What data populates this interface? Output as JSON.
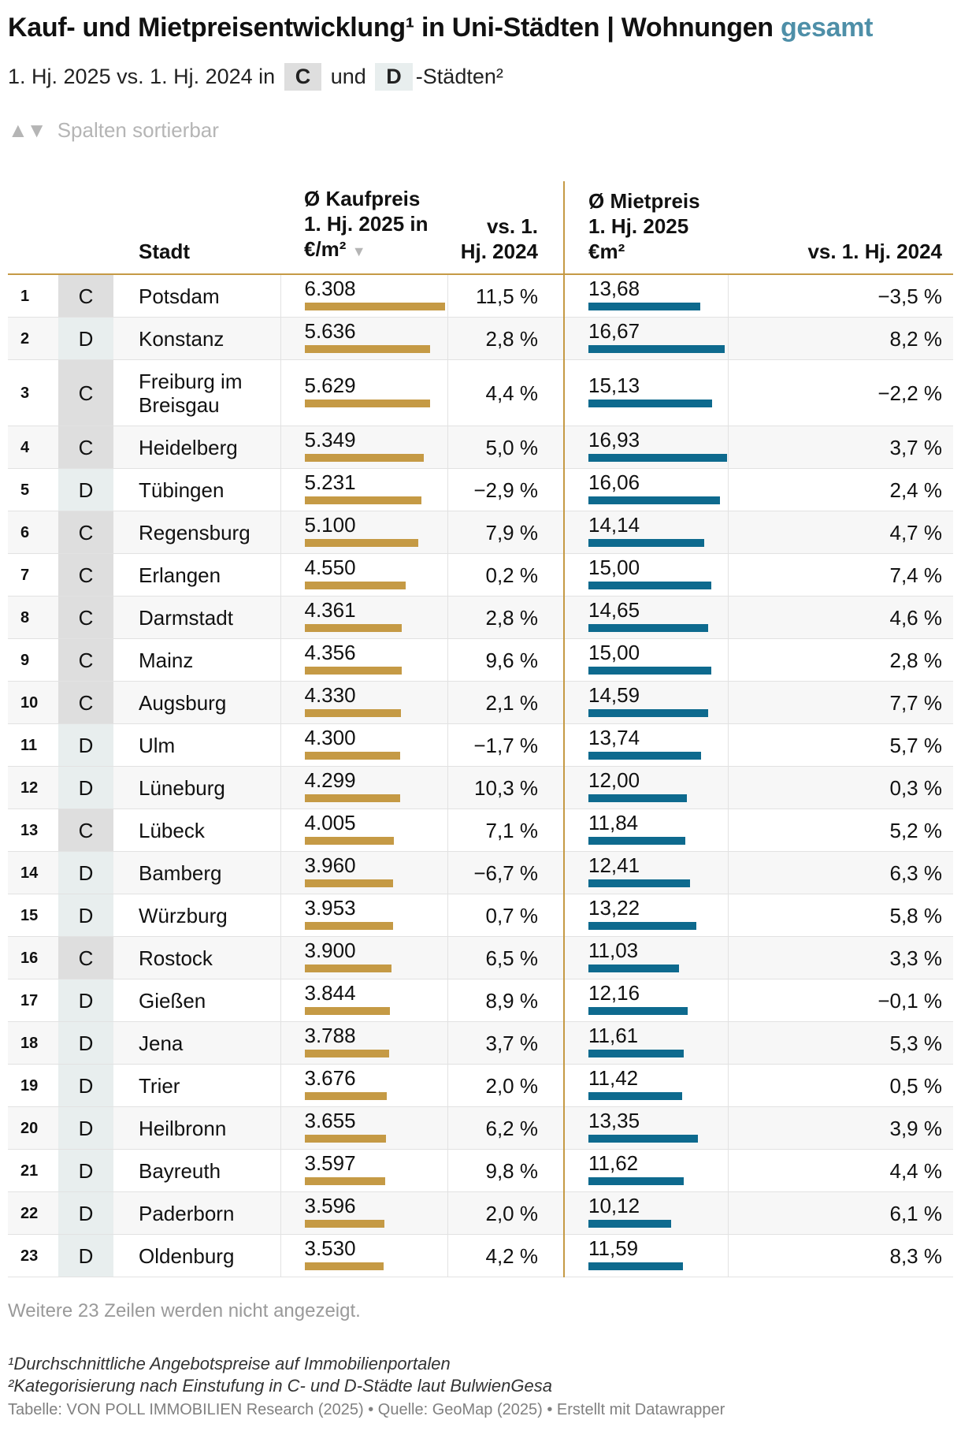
{
  "header": {
    "title_main": "Kauf- und Mietpreisentwicklung¹ in Uni-Städten | Wohnungen",
    "title_highlight": "gesamt",
    "subtitle_pre": "1. Hj. 2025 vs. 1. Hj. 2024 in",
    "tag_c": "C",
    "subtitle_mid": "und",
    "tag_d": "D",
    "subtitle_post": "-Städten²",
    "sort_hint": "Spalten sortierbar",
    "sort_hint_icon": "▲▼"
  },
  "columns": {
    "stadt": "Stadt",
    "kaufpreis": "Ø Kaufpreis 1. Hj. 2025 in €/m²",
    "kaufpreis_sort_icon": "▼",
    "vs_kauf": "vs. 1. Hj. 2024",
    "mietpreis": "Ø Mietpreis 1. Hj. 2025 €m²",
    "vs_miete": "vs. 1. Hj. 2024"
  },
  "colors": {
    "kauf_bar": "#c59a45",
    "miete_bar": "#0e6a8e",
    "highlight": "#4e8fa8"
  },
  "chart_data": {
    "type": "table",
    "kauf_max": 6308,
    "miete_max": 16.93,
    "rows": [
      {
        "rank": "1",
        "cat": "C",
        "city": "Potsdam",
        "kauf": 6308,
        "kauf_label": "6.308",
        "kauf_change": "11,5 %",
        "miete": 13.68,
        "miete_label": "13,68",
        "miete_change": "−3,5 %"
      },
      {
        "rank": "2",
        "cat": "D",
        "city": "Konstanz",
        "kauf": 5636,
        "kauf_label": "5.636",
        "kauf_change": "2,8 %",
        "miete": 16.67,
        "miete_label": "16,67",
        "miete_change": "8,2 %"
      },
      {
        "rank": "3",
        "cat": "C",
        "city": "Freiburg im Breisgau",
        "kauf": 5629,
        "kauf_label": "5.629",
        "kauf_change": "4,4 %",
        "miete": 15.13,
        "miete_label": "15,13",
        "miete_change": "−2,2 %"
      },
      {
        "rank": "4",
        "cat": "C",
        "city": "Heidelberg",
        "kauf": 5349,
        "kauf_label": "5.349",
        "kauf_change": "5,0 %",
        "miete": 16.93,
        "miete_label": "16,93",
        "miete_change": "3,7 %"
      },
      {
        "rank": "5",
        "cat": "D",
        "city": "Tübingen",
        "kauf": 5231,
        "kauf_label": "5.231",
        "kauf_change": "−2,9 %",
        "miete": 16.06,
        "miete_label": "16,06",
        "miete_change": "2,4 %"
      },
      {
        "rank": "6",
        "cat": "C",
        "city": "Regensburg",
        "kauf": 5100,
        "kauf_label": "5.100",
        "kauf_change": "7,9 %",
        "miete": 14.14,
        "miete_label": "14,14",
        "miete_change": "4,7 %"
      },
      {
        "rank": "7",
        "cat": "C",
        "city": "Erlangen",
        "kauf": 4550,
        "kauf_label": "4.550",
        "kauf_change": "0,2 %",
        "miete": 15.0,
        "miete_label": "15,00",
        "miete_change": "7,4 %"
      },
      {
        "rank": "8",
        "cat": "C",
        "city": "Darmstadt",
        "kauf": 4361,
        "kauf_label": "4.361",
        "kauf_change": "2,8 %",
        "miete": 14.65,
        "miete_label": "14,65",
        "miete_change": "4,6 %"
      },
      {
        "rank": "9",
        "cat": "C",
        "city": "Mainz",
        "kauf": 4356,
        "kauf_label": "4.356",
        "kauf_change": "9,6 %",
        "miete": 15.0,
        "miete_label": "15,00",
        "miete_change": "2,8 %"
      },
      {
        "rank": "10",
        "cat": "C",
        "city": "Augsburg",
        "kauf": 4330,
        "kauf_label": "4.330",
        "kauf_change": "2,1 %",
        "miete": 14.59,
        "miete_label": "14,59",
        "miete_change": "7,7 %"
      },
      {
        "rank": "11",
        "cat": "D",
        "city": "Ulm",
        "kauf": 4300,
        "kauf_label": "4.300",
        "kauf_change": "−1,7 %",
        "miete": 13.74,
        "miete_label": "13,74",
        "miete_change": "5,7 %"
      },
      {
        "rank": "12",
        "cat": "D",
        "city": "Lüneburg",
        "kauf": 4299,
        "kauf_label": "4.299",
        "kauf_change": "10,3 %",
        "miete": 12.0,
        "miete_label": "12,00",
        "miete_change": "0,3 %"
      },
      {
        "rank": "13",
        "cat": "C",
        "city": "Lübeck",
        "kauf": 4005,
        "kauf_label": "4.005",
        "kauf_change": "7,1 %",
        "miete": 11.84,
        "miete_label": "11,84",
        "miete_change": "5,2 %"
      },
      {
        "rank": "14",
        "cat": "D",
        "city": "Bamberg",
        "kauf": 3960,
        "kauf_label": "3.960",
        "kauf_change": "−6,7 %",
        "miete": 12.41,
        "miete_label": "12,41",
        "miete_change": "6,3 %"
      },
      {
        "rank": "15",
        "cat": "D",
        "city": "Würzburg",
        "kauf": 3953,
        "kauf_label": "3.953",
        "kauf_change": "0,7 %",
        "miete": 13.22,
        "miete_label": "13,22",
        "miete_change": "5,8 %"
      },
      {
        "rank": "16",
        "cat": "C",
        "city": "Rostock",
        "kauf": 3900,
        "kauf_label": "3.900",
        "kauf_change": "6,5 %",
        "miete": 11.03,
        "miete_label": "11,03",
        "miete_change": "3,3 %"
      },
      {
        "rank": "17",
        "cat": "D",
        "city": "Gießen",
        "kauf": 3844,
        "kauf_label": "3.844",
        "kauf_change": "8,9 %",
        "miete": 12.16,
        "miete_label": "12,16",
        "miete_change": "−0,1 %"
      },
      {
        "rank": "18",
        "cat": "D",
        "city": "Jena",
        "kauf": 3788,
        "kauf_label": "3.788",
        "kauf_change": "3,7 %",
        "miete": 11.61,
        "miete_label": "11,61",
        "miete_change": "5,3 %"
      },
      {
        "rank": "19",
        "cat": "D",
        "city": "Trier",
        "kauf": 3676,
        "kauf_label": "3.676",
        "kauf_change": "2,0 %",
        "miete": 11.42,
        "miete_label": "11,42",
        "miete_change": "0,5 %"
      },
      {
        "rank": "20",
        "cat": "D",
        "city": "Heilbronn",
        "kauf": 3655,
        "kauf_label": "3.655",
        "kauf_change": "6,2 %",
        "miete": 13.35,
        "miete_label": "13,35",
        "miete_change": "3,9 %"
      },
      {
        "rank": "21",
        "cat": "D",
        "city": "Bayreuth",
        "kauf": 3597,
        "kauf_label": "3.597",
        "kauf_change": "9,8 %",
        "miete": 11.62,
        "miete_label": "11,62",
        "miete_change": "4,4 %"
      },
      {
        "rank": "22",
        "cat": "D",
        "city": "Paderborn",
        "kauf": 3596,
        "kauf_label": "3.596",
        "kauf_change": "2,0 %",
        "miete": 10.12,
        "miete_label": "10,12",
        "miete_change": "6,1 %"
      },
      {
        "rank": "23",
        "cat": "D",
        "city": "Oldenburg",
        "kauf": 3530,
        "kauf_label": "3.530",
        "kauf_change": "4,2 %",
        "miete": 11.59,
        "miete_label": "11,59",
        "miete_change": "8,3 %"
      }
    ]
  },
  "footer": {
    "more_rows": "Weitere 23 Zeilen werden nicht angezeigt.",
    "note1": "¹Durchschnittliche Angebotspreise auf Immobilienportalen",
    "note2": "²Kategorisierung nach Einstufung in C- und D-Städte laut BulwienGesa",
    "source": "Tabelle: VON POLL IMMOBILIEN Research (2025) • Quelle: GeoMap (2025) • Erstellt mit Datawrapper"
  }
}
